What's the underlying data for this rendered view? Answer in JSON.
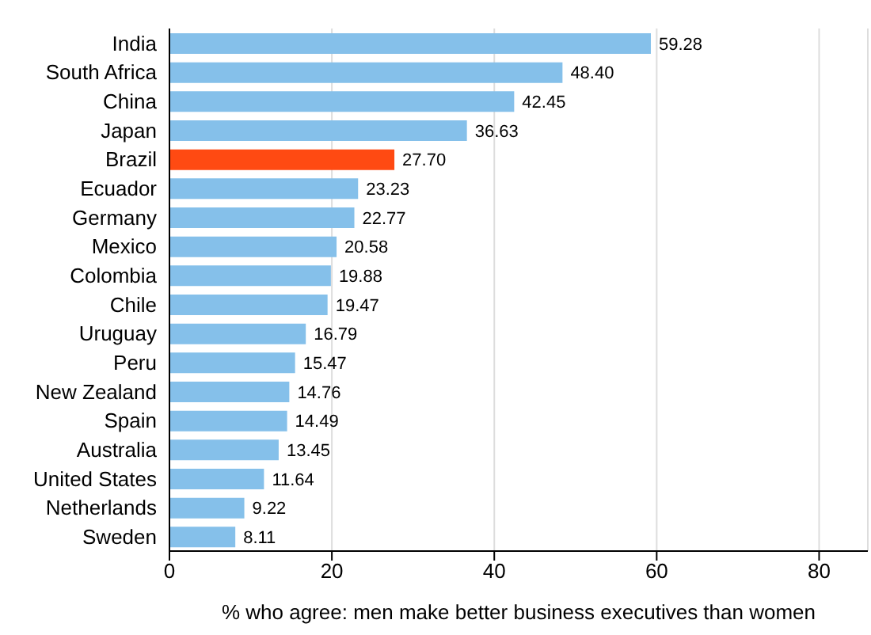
{
  "chart_data": {
    "type": "bar",
    "orientation": "horizontal",
    "xlabel": "% who agree: men make better business executives than women",
    "categories": [
      "India",
      "South Africa",
      "China",
      "Japan",
      "Brazil",
      "Ecuador",
      "Germany",
      "Mexico",
      "Colombia",
      "Chile",
      "Uruguay",
      "Peru",
      "New Zealand",
      "Spain",
      "Australia",
      "United States",
      "Netherlands",
      "Sweden"
    ],
    "values": [
      59.28,
      48.4,
      42.45,
      36.63,
      27.7,
      23.23,
      22.77,
      20.58,
      19.88,
      19.47,
      16.79,
      15.47,
      14.76,
      14.49,
      13.45,
      11.64,
      9.22,
      8.11
    ],
    "value_labels": [
      "59.28",
      "48.40",
      "42.45",
      "36.63",
      "27.70",
      "23.23",
      "22.77",
      "20.58",
      "19.88",
      "19.47",
      "16.79",
      "15.47",
      "14.76",
      "14.49",
      "13.45",
      "11.64",
      "9.22",
      "8.11"
    ],
    "colors": [
      "#85c0ea",
      "#85c0ea",
      "#85c0ea",
      "#85c0ea",
      "#ff4a12",
      "#85c0ea",
      "#85c0ea",
      "#85c0ea",
      "#85c0ea",
      "#85c0ea",
      "#85c0ea",
      "#85c0ea",
      "#85c0ea",
      "#85c0ea",
      "#85c0ea",
      "#85c0ea",
      "#85c0ea",
      "#85c0ea"
    ],
    "xlim": [
      0,
      86
    ],
    "xticks": [
      0,
      20,
      40,
      60,
      80
    ],
    "grid": "x"
  }
}
